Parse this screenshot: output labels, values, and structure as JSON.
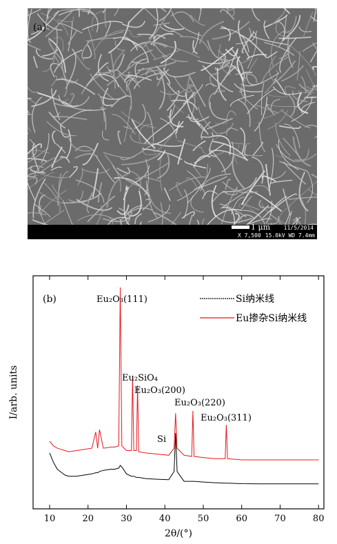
{
  "panel_a": {
    "label": "(a)",
    "scale_bar": "1 μm",
    "date": "11/5/2014",
    "magnification": "X 7,500",
    "settings": "15.0kV WD 7.4mm"
  },
  "chart_data": {
    "type": "line",
    "xlabel": "2θ/(°)",
    "ylabel": "I/arb. units",
    "annotations": [
      "(b)",
      "Eu₂O₃(111)",
      "Eu₂SiO₄",
      "Eu₂O₃(200)",
      "Eu₂O₃(220)",
      "Eu₂O₃(311)",
      "Si"
    ],
    "x": [
      10,
      11,
      12,
      13,
      14,
      15,
      17,
      19,
      21,
      22,
      22.5,
      23,
      24,
      26,
      27,
      28,
      28.4,
      28.8,
      30,
      31.3,
      31.6,
      31.9,
      32.6,
      32.9,
      33.2,
      35,
      38,
      41,
      42.4,
      42.8,
      43.2,
      45,
      47,
      47.3,
      47.6,
      50,
      53,
      55.7,
      56,
      56.3,
      60,
      65,
      70,
      75,
      80
    ],
    "series": [
      {
        "name": "Si纳米线",
        "color": "#000000",
        "values": [
          24,
          20,
          17,
          15.7,
          14.5,
          14,
          14,
          14.5,
          15,
          15.5,
          15.5,
          16,
          16.5,
          17,
          17,
          17.5,
          18.6,
          18,
          15,
          14,
          14,
          14,
          13.5,
          13.5,
          13.5,
          13,
          12.7,
          12.5,
          16,
          32.5,
          16,
          11.8,
          11.8,
          11.8,
          11.8,
          11.5,
          11.2,
          11,
          11,
          11,
          10.8,
          10.7,
          10.7,
          10.7,
          10.7
        ]
      },
      {
        "name": "Eu掺杂Si纳米线",
        "color": "#e8141c",
        "values": [
          29,
          27,
          26,
          25.5,
          25,
          24.5,
          25,
          25.5,
          26,
          33,
          26,
          34,
          26,
          26.5,
          26.5,
          27,
          95,
          27,
          25,
          25,
          57,
          25,
          25,
          53,
          24.5,
          24,
          23.5,
          23,
          26,
          41,
          26,
          23,
          22.5,
          42,
          22.5,
          22,
          21.5,
          21.5,
          36,
          21.5,
          21,
          21,
          21,
          21,
          21
        ]
      }
    ],
    "xlim": [
      5.7,
      81.4
    ],
    "ylim": [
      0,
      100
    ],
    "xticks": [
      10,
      20,
      30,
      40,
      50,
      60,
      70,
      80
    ]
  }
}
